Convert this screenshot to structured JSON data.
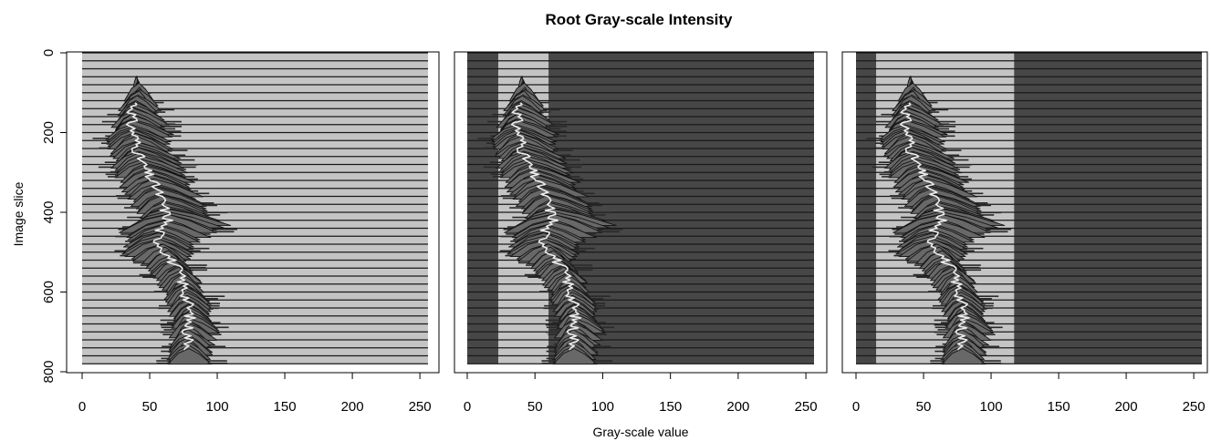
{
  "figure": {
    "title": "Root Gray-scale Intensity",
    "xlabel": "Gray-scale value",
    "ylabel": "Image slice"
  },
  "colors": {
    "band_light": "#c4c4c4",
    "band_dark": "#474747",
    "grid_line": "#1a1a1a",
    "ridge_fill": "#686868",
    "ridge_stroke": "#141414",
    "ridge_stroke_secondary": "#2a2a2a",
    "mean_line": "#ececec"
  },
  "chart_data": [
    {
      "type": "area",
      "panel": "left",
      "xlim": [
        0,
        256
      ],
      "ylim": [
        800,
        0
      ],
      "y_reversed": true,
      "x_ticks": [
        0,
        50,
        100,
        150,
        200,
        250
      ],
      "y_ticks": [
        0,
        200,
        400,
        600,
        800
      ],
      "slice_range": [
        0,
        780
      ],
      "slice_line_spacing": 20,
      "background_bands": [
        {
          "from": 0,
          "to": 256,
          "shade": "light"
        }
      ],
      "distribution_edges": {
        "slice": [
          65,
          100,
          140,
          180,
          220,
          260,
          300,
          340,
          380,
          400,
          420,
          440,
          470,
          500,
          540,
          580,
          620,
          660,
          700,
          740,
          750
        ],
        "left": [
          38,
          32,
          24,
          20,
          22,
          24,
          30,
          35,
          45,
          40,
          30,
          38,
          28,
          46,
          56,
          62,
          66,
          68,
          66,
          65,
          66
        ],
        "right": [
          44,
          52,
          62,
          65,
          68,
          72,
          82,
          88,
          95,
          110,
          96,
          88,
          80,
          76,
          85,
          90,
          96,
          98,
          97,
          94,
          94
        ],
        "mean": [
          40,
          43,
          38,
          36,
          40,
          42,
          48,
          55,
          60,
          62,
          64,
          58,
          56,
          62,
          70,
          75,
          78,
          80,
          78,
          80,
          79
        ]
      }
    },
    {
      "type": "area",
      "panel": "middle",
      "xlim": [
        0,
        256
      ],
      "ylim": [
        800,
        0
      ],
      "y_reversed": true,
      "x_ticks": [
        0,
        50,
        100,
        150,
        200,
        250
      ],
      "slice_range": [
        0,
        780
      ],
      "slice_line_spacing": 20,
      "background_bands": [
        {
          "from": 0,
          "to": 23,
          "shade": "dark"
        },
        {
          "from": 23,
          "to": 60,
          "shade": "light"
        },
        {
          "from": 60,
          "to": 256,
          "shade": "dark"
        }
      ],
      "distribution_edges": {
        "slice": [
          65,
          100,
          140,
          180,
          220,
          260,
          300,
          340,
          380,
          400,
          420,
          440,
          470,
          500,
          540,
          580,
          620,
          660,
          700,
          740,
          750
        ],
        "left": [
          38,
          32,
          24,
          20,
          22,
          24,
          30,
          35,
          45,
          40,
          30,
          38,
          28,
          46,
          56,
          62,
          66,
          68,
          66,
          65,
          66
        ],
        "right": [
          44,
          52,
          62,
          65,
          68,
          72,
          82,
          88,
          95,
          110,
          96,
          88,
          80,
          76,
          85,
          90,
          96,
          98,
          97,
          94,
          94
        ],
        "mean": [
          40,
          43,
          38,
          36,
          40,
          42,
          48,
          55,
          60,
          62,
          64,
          58,
          56,
          62,
          70,
          75,
          78,
          80,
          78,
          80,
          79
        ]
      }
    },
    {
      "type": "area",
      "panel": "right",
      "xlim": [
        0,
        256
      ],
      "ylim": [
        800,
        0
      ],
      "y_reversed": true,
      "x_ticks": [
        0,
        50,
        100,
        150,
        200,
        250
      ],
      "slice_range": [
        0,
        780
      ],
      "slice_line_spacing": 20,
      "background_bands": [
        {
          "from": 0,
          "to": 15,
          "shade": "dark"
        },
        {
          "from": 15,
          "to": 117,
          "shade": "light"
        },
        {
          "from": 117,
          "to": 256,
          "shade": "dark"
        }
      ],
      "distribution_edges": {
        "slice": [
          65,
          100,
          140,
          180,
          220,
          260,
          300,
          340,
          380,
          400,
          420,
          440,
          470,
          500,
          540,
          580,
          620,
          660,
          700,
          740,
          750
        ],
        "left": [
          38,
          32,
          24,
          20,
          22,
          24,
          30,
          35,
          45,
          40,
          30,
          38,
          28,
          46,
          56,
          62,
          66,
          68,
          66,
          65,
          66
        ],
        "right": [
          44,
          52,
          62,
          65,
          68,
          72,
          82,
          88,
          95,
          110,
          96,
          88,
          80,
          76,
          85,
          90,
          96,
          98,
          97,
          94,
          94
        ],
        "mean": [
          40,
          43,
          38,
          36,
          40,
          42,
          48,
          55,
          60,
          62,
          64,
          58,
          56,
          62,
          70,
          75,
          78,
          80,
          78,
          80,
          79
        ]
      }
    }
  ]
}
